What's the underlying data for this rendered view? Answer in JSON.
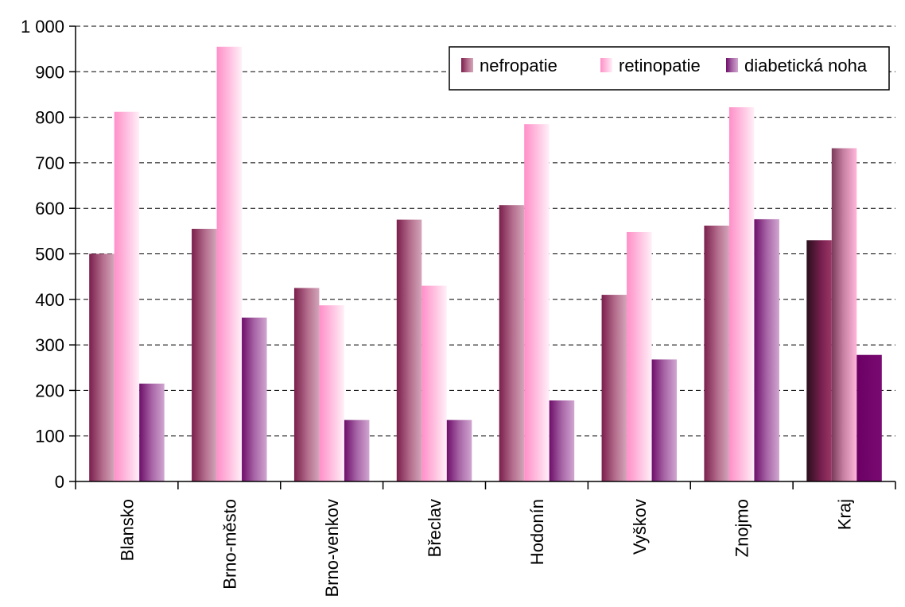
{
  "chart_data": {
    "type": "bar",
    "categories": [
      "Blansko",
      "Brno-město",
      "Brno-venkov",
      "Břeclav",
      "Hodonín",
      "Vyškov",
      "Znojmo",
      "Kraj"
    ],
    "series": [
      {
        "name": "nefropatie",
        "values": [
          500,
          555,
          425,
          575,
          607,
          410,
          562,
          530
        ],
        "color": "#a3527a"
      },
      {
        "name": "retinopatie",
        "values": [
          812,
          955,
          387,
          430,
          785,
          548,
          822,
          732
        ],
        "color": "#ffb0d8"
      },
      {
        "name": "diabetická noha",
        "values": [
          215,
          360,
          135,
          135,
          178,
          268,
          576,
          278
        ],
        "color": "#8c2f88"
      }
    ],
    "ylim": [
      0,
      1000
    ],
    "yticks": [
      0,
      100,
      200,
      300,
      400,
      500,
      600,
      700,
      800,
      900,
      1000
    ],
    "ytick_labels": [
      "0",
      "100",
      "200",
      "300",
      "400",
      "500",
      "600",
      "700",
      "800",
      "900",
      "1 000"
    ],
    "grid": true,
    "legend_position": "top-right",
    "title": "",
    "xlabel": "",
    "ylabel": ""
  }
}
